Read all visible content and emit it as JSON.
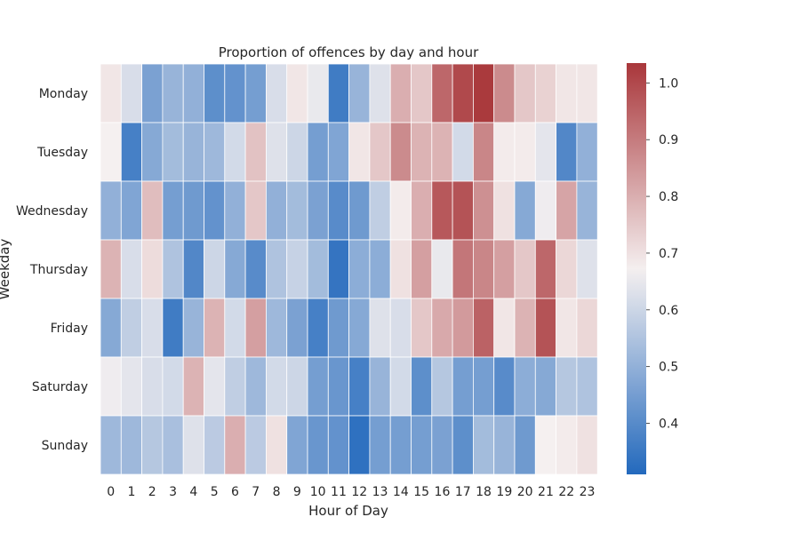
{
  "chart_data": {
    "type": "heatmap",
    "title": "Proportion of offences by day and hour",
    "xlabel": "Hour of Day",
    "ylabel": "Weekday",
    "x": [
      "0",
      "1",
      "2",
      "3",
      "4",
      "5",
      "6",
      "7",
      "8",
      "9",
      "10",
      "11",
      "12",
      "13",
      "14",
      "15",
      "16",
      "17",
      "18",
      "19",
      "20",
      "21",
      "22",
      "23"
    ],
    "y": [
      "Monday",
      "Tuesday",
      "Wednesday",
      "Thursday",
      "Friday",
      "Saturday",
      "Sunday"
    ],
    "values": [
      [
        0.69,
        0.62,
        0.46,
        0.51,
        0.5,
        0.41,
        0.42,
        0.45,
        0.62,
        0.69,
        0.65,
        0.36,
        0.51,
        0.63,
        0.8,
        0.75,
        0.94,
        1.0,
        1.03,
        0.87,
        0.75,
        0.73,
        0.69,
        0.69
      ],
      [
        0.67,
        0.37,
        0.48,
        0.53,
        0.51,
        0.52,
        0.61,
        0.76,
        0.63,
        0.6,
        0.45,
        0.47,
        0.69,
        0.75,
        0.87,
        0.79,
        0.79,
        0.61,
        0.88,
        0.68,
        0.68,
        0.64,
        0.39,
        0.5
      ],
      [
        0.5,
        0.47,
        0.77,
        0.45,
        0.44,
        0.42,
        0.5,
        0.75,
        0.5,
        0.53,
        0.46,
        0.4,
        0.44,
        0.58,
        0.68,
        0.8,
        0.97,
        0.98,
        0.86,
        0.7,
        0.48,
        0.66,
        0.82,
        0.51
      ],
      [
        0.79,
        0.62,
        0.71,
        0.55,
        0.39,
        0.6,
        0.48,
        0.4,
        0.55,
        0.59,
        0.53,
        0.34,
        0.49,
        0.49,
        0.7,
        0.83,
        0.65,
        0.91,
        0.88,
        0.83,
        0.75,
        0.94,
        0.72,
        0.63
      ],
      [
        0.48,
        0.58,
        0.62,
        0.36,
        0.51,
        0.79,
        0.61,
        0.83,
        0.52,
        0.46,
        0.37,
        0.44,
        0.48,
        0.63,
        0.62,
        0.75,
        0.81,
        0.84,
        0.95,
        0.69,
        0.79,
        0.98,
        0.69,
        0.72
      ],
      [
        0.66,
        0.64,
        0.62,
        0.61,
        0.79,
        0.64,
        0.58,
        0.52,
        0.61,
        0.6,
        0.45,
        0.43,
        0.37,
        0.51,
        0.61,
        0.41,
        0.56,
        0.45,
        0.45,
        0.4,
        0.49,
        0.48,
        0.56,
        0.55
      ],
      [
        0.52,
        0.52,
        0.56,
        0.54,
        0.63,
        0.57,
        0.8,
        0.57,
        0.7,
        0.47,
        0.43,
        0.42,
        0.33,
        0.45,
        0.45,
        0.45,
        0.46,
        0.41,
        0.53,
        0.51,
        0.44,
        0.67,
        0.68,
        0.7
      ]
    ],
    "colorbar": {
      "vmin": 0.31,
      "vmax": 1.035,
      "ticks": [
        "0.4",
        "0.5",
        "0.6",
        "0.7",
        "0.8",
        "0.9",
        "1.0"
      ],
      "colormap": "vlag",
      "low_color": "#2369bd",
      "mid_color": "#f5f0f0",
      "high_color": "#a9373b"
    },
    "grid": false,
    "cell_border_color": "#ffffff"
  }
}
